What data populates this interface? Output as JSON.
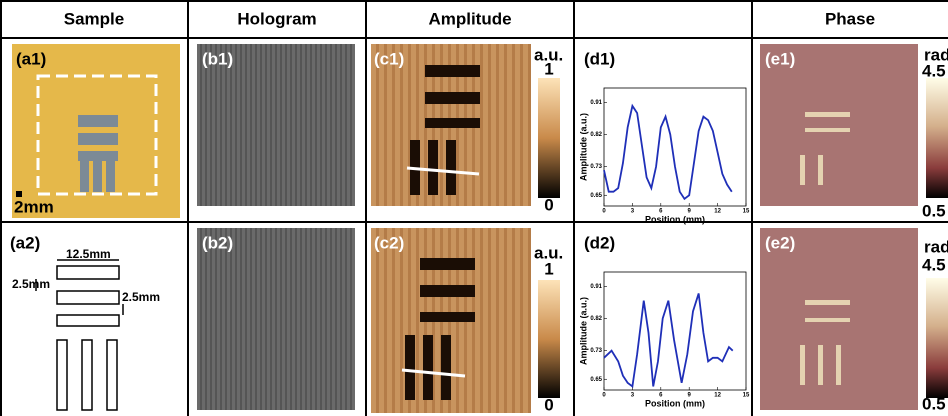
{
  "header": {
    "sample": "Sample",
    "hologram": "Hologram",
    "amplitude": "Amplitude",
    "phase": "Phase"
  },
  "rows": [
    {
      "sample_label": "(a1)",
      "scale_bar": "2mm",
      "hologram_label": "(b1)",
      "amplitude_label": "(c1)",
      "amplitude_unit": "a.u.",
      "amplitude_max": "1",
      "amplitude_min": "0",
      "phase_label": "(e1)",
      "phase_unit": "rad",
      "phase_max": "4.5",
      "phase_min": "0.5"
    },
    {
      "sample_label": "(a2)",
      "length": "12.5mm",
      "gap_left": "2.5mm",
      "gap_right": "2.5mm",
      "hologram_label": "(b2)",
      "amplitude_label": "(c2)",
      "amplitude_unit": "a.u.",
      "amplitude_max": "1",
      "amplitude_min": "0",
      "phase_label": "(e2)",
      "phase_unit": "rad",
      "phase_max": "4.5",
      "phase_min": "0.5"
    }
  ],
  "chart_data": [
    {
      "type": "line",
      "label": "(d1)",
      "xlabel": "Position (mm)",
      "ylabel": "Amplitude (a.u.)",
      "color": "#1f2fb8",
      "x": [
        0,
        0.5,
        1,
        1.5,
        2,
        2.5,
        3,
        3.5,
        4,
        4.5,
        5,
        5.5,
        6,
        6.5,
        7,
        7.5,
        8,
        8.5,
        9,
        9.5,
        10,
        10.5,
        11,
        11.5,
        12,
        12.5,
        13,
        13.5
      ],
      "values": [
        0.72,
        0.66,
        0.66,
        0.67,
        0.74,
        0.84,
        0.9,
        0.88,
        0.79,
        0.7,
        0.67,
        0.73,
        0.84,
        0.87,
        0.82,
        0.73,
        0.66,
        0.64,
        0.65,
        0.74,
        0.83,
        0.87,
        0.86,
        0.83,
        0.77,
        0.71,
        0.68,
        0.66
      ],
      "xlim": [
        0,
        15
      ],
      "ylim": [
        0.62,
        0.95
      ],
      "xticks": [
        0,
        3,
        6,
        9,
        12,
        15
      ],
      "yticks": [
        0.65,
        0.73,
        0.82,
        0.91
      ]
    },
    {
      "type": "line",
      "label": "(d2)",
      "xlabel": "Position (mm)",
      "ylabel": "Amplitude (a.u.)",
      "color": "#1f2fb8",
      "x": [
        0,
        0.8,
        1.5,
        2,
        2.5,
        3,
        3.5,
        4.2,
        4.7,
        5.2,
        5.7,
        6.2,
        6.8,
        7.4,
        8.2,
        8.8,
        9.4,
        10,
        10.5,
        11,
        11.5,
        12,
        12.5,
        13.2,
        13.6
      ],
      "values": [
        0.71,
        0.73,
        0.7,
        0.66,
        0.64,
        0.63,
        0.72,
        0.87,
        0.78,
        0.63,
        0.7,
        0.82,
        0.87,
        0.76,
        0.64,
        0.72,
        0.84,
        0.89,
        0.78,
        0.7,
        0.71,
        0.71,
        0.7,
        0.74,
        0.73
      ],
      "xlim": [
        0,
        15
      ],
      "ylim": [
        0.62,
        0.95
      ],
      "xticks": [
        0,
        3,
        6,
        9,
        12,
        15
      ],
      "yticks": [
        0.65,
        0.73,
        0.82,
        0.91
      ]
    }
  ]
}
